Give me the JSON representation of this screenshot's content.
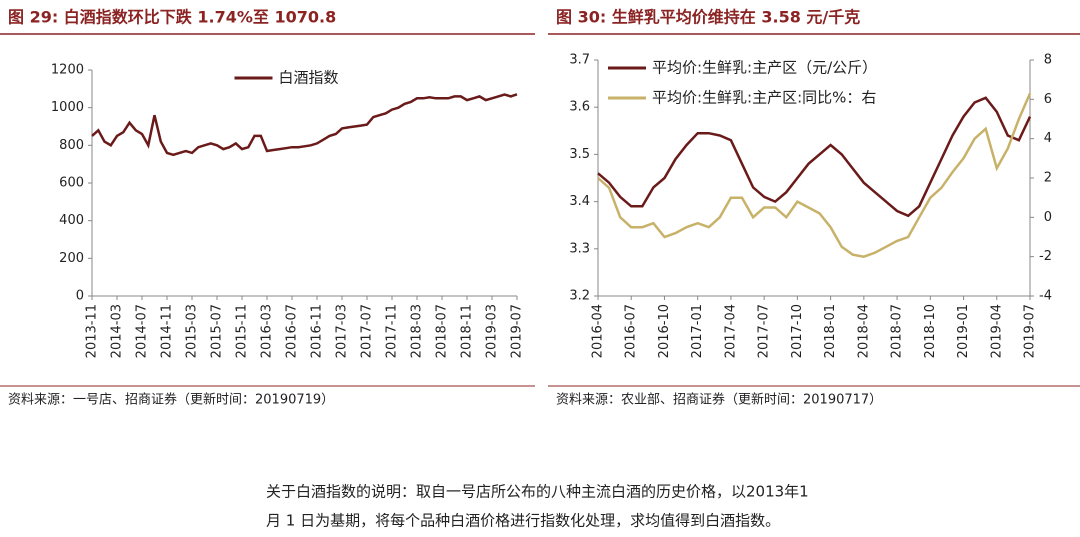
{
  "chart_data": [
    {
      "type": "line",
      "title": "图 29:  白酒指数环比下跌 1.74%至 1070.8",
      "source": "资料来源：一号店、招商证券（更新时间：20190719）",
      "legend": "upper center",
      "categories": [
        "2013-11",
        null,
        null,
        null,
        "2014-03",
        null,
        null,
        null,
        "2014-07",
        null,
        null,
        null,
        "2014-11",
        null,
        null,
        null,
        "2015-03",
        null,
        null,
        null,
        "2015-07",
        null,
        null,
        null,
        "2015-11",
        null,
        null,
        null,
        "2016-03",
        null,
        null,
        null,
        "2016-07",
        null,
        null,
        null,
        "2016-11",
        null,
        null,
        null,
        "2017-03",
        null,
        null,
        null,
        "2017-07",
        null,
        null,
        null,
        "2017-11",
        null,
        null,
        null,
        "2018-03",
        null,
        null,
        null,
        "2018-07",
        null,
        null,
        null,
        "2018-11",
        null,
        null,
        null,
        "2019-03",
        null,
        null,
        null,
        "2019-07"
      ],
      "series": [
        {
          "name": "白酒指数",
          "color": "#6b1a1a",
          "values": [
            850,
            880,
            820,
            800,
            850,
            870,
            920,
            880,
            860,
            800,
            960,
            820,
            760,
            750,
            760,
            770,
            760,
            790,
            800,
            810,
            800,
            780,
            790,
            810,
            780,
            790,
            850,
            850,
            770,
            775,
            780,
            785,
            790,
            790,
            795,
            800,
            810,
            830,
            850,
            860,
            890,
            895,
            900,
            905,
            910,
            950,
            960,
            970,
            990,
            1000,
            1020,
            1030,
            1050,
            1050,
            1055,
            1050,
            1050,
            1050,
            1060,
            1060,
            1040,
            1050,
            1060,
            1040,
            1050,
            1060,
            1070,
            1060,
            1071
          ]
        }
      ],
      "ylim": [
        0,
        1200
      ],
      "yticks": [
        0,
        200,
        400,
        600,
        800,
        1000,
        1200
      ]
    },
    {
      "type": "line",
      "title": "图 30:  生鲜乳平均价维持在 3.58 元/千克",
      "source": "资料来源：农业部、招商证券（更新时间：20190717）",
      "legend": "upper left",
      "categories": [
        "2016-04",
        null,
        null,
        "2016-07",
        null,
        null,
        "2016-10",
        null,
        null,
        "2017-01",
        null,
        null,
        "2017-04",
        null,
        null,
        "2017-07",
        null,
        null,
        "2017-10",
        null,
        null,
        "2018-01",
        null,
        null,
        "2018-04",
        null,
        null,
        "2018-07",
        null,
        null,
        "2018-10",
        null,
        null,
        "2019-01",
        null,
        null,
        "2019-04",
        null,
        null,
        "2019-07"
      ],
      "series": [
        {
          "name": "平均价:生鲜乳:主产区（元/公斤）",
          "color": "#6b1a1a",
          "values": [
            3.46,
            3.44,
            3.41,
            3.39,
            3.39,
            3.43,
            3.45,
            3.49,
            3.52,
            3.545,
            3.545,
            3.54,
            3.53,
            3.48,
            3.43,
            3.41,
            3.4,
            3.42,
            3.45,
            3.48,
            3.5,
            3.52,
            3.5,
            3.47,
            3.44,
            3.42,
            3.4,
            3.38,
            3.37,
            3.39,
            3.44,
            3.49,
            3.54,
            3.58,
            3.61,
            3.62,
            3.59,
            3.54,
            3.53,
            3.58
          ]
        },
        {
          "name": "平均价:生鲜乳:主产区:同比%：右",
          "color": "#c8b26a",
          "axis": "y2",
          "values": [
            2.0,
            1.5,
            0.0,
            -0.5,
            -0.5,
            -0.3,
            -1.0,
            -0.8,
            -0.5,
            -0.3,
            -0.5,
            0.0,
            1.0,
            1.0,
            0.0,
            0.5,
            0.5,
            0.0,
            0.8,
            0.5,
            0.2,
            -0.5,
            -1.5,
            -1.9,
            -2.0,
            -1.8,
            -1.5,
            -1.2,
            -1.0,
            0.0,
            1.0,
            1.5,
            2.3,
            3.0,
            4.0,
            4.5,
            2.5,
            3.5,
            5.0,
            6.3
          ]
        }
      ],
      "ylim": [
        3.2,
        3.7
      ],
      "yticks": [
        3.2,
        3.3,
        3.4,
        3.5,
        3.6,
        3.7
      ],
      "y2lim": [
        -4,
        8
      ],
      "y2ticks": [
        -4,
        -2,
        0,
        2,
        4,
        6,
        8
      ]
    }
  ],
  "note": {
    "lines": [
      "关于白酒指数的说明：取自一号店所公布的八种主流白酒的历史价格，以2013年1",
      "月 1 日为基期，将每个品种白酒价格进行指数化处理，求均值得到白酒指数。"
    ]
  }
}
